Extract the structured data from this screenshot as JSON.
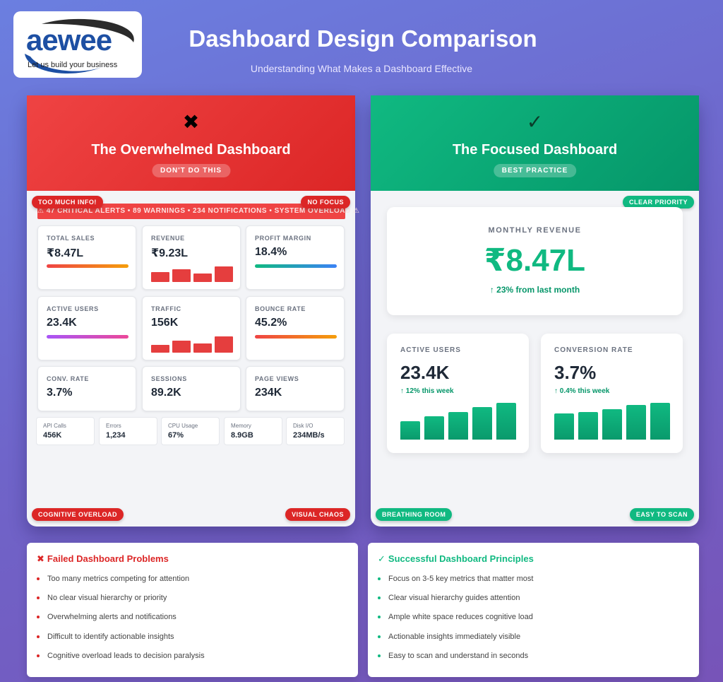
{
  "logo": {
    "brand": "aewee",
    "tagline": "Let us build your business"
  },
  "header": {
    "title": "Dashboard Design Comparison",
    "subtitle": "Understanding What Makes a Dashboard Effective"
  },
  "colors": {
    "bad": "#dc2626",
    "good": "#10b981"
  },
  "bad_panel": {
    "icon": "cross-icon",
    "icon_glyph": "✖",
    "title": "The Overwhelmed Dashboard",
    "pill": "DON'T DO THIS",
    "badges": {
      "top_left": "TOO MUCH INFO!",
      "top_right": "NO FOCUS",
      "bottom_left": "COGNITIVE OVERLOAD",
      "bottom_right": "VISUAL CHAOS"
    },
    "alert": "⚠ 47 CRITICAL ALERTS • 89 WARNINGS • 234 NOTIFICATIONS • SYSTEM OVERLOAD ⚠",
    "metrics": [
      {
        "label": "TOTAL SALES",
        "value": "₹8.47L"
      },
      {
        "label": "REVENUE",
        "value": "₹9.23L"
      },
      {
        "label": "PROFIT MARGIN",
        "value": "18.4%"
      },
      {
        "label": "ACTIVE USERS",
        "value": "23.4K"
      },
      {
        "label": "TRAFFIC",
        "value": "156K"
      },
      {
        "label": "BOUNCE RATE",
        "value": "45.2%"
      },
      {
        "label": "CONV. RATE",
        "value": "3.7%"
      },
      {
        "label": "SESSIONS",
        "value": "89.2K"
      },
      {
        "label": "PAGE VIEWS",
        "value": "234K"
      }
    ],
    "small_metrics": [
      {
        "label": "API Calls",
        "value": "456K"
      },
      {
        "label": "Errors",
        "value": "1,234"
      },
      {
        "label": "CPU Usage",
        "value": "67%"
      },
      {
        "label": "Memory",
        "value": "8.9GB"
      },
      {
        "label": "Disk I/O",
        "value": "234MB/s"
      }
    ],
    "mini_charts": {
      "revenue": [
        0.6,
        0.75,
        0.5,
        0.9
      ],
      "traffic": [
        0.45,
        0.7,
        0.55,
        0.95
      ]
    }
  },
  "good_panel": {
    "icon": "check-icon",
    "icon_glyph": "✓",
    "title": "The Focused Dashboard",
    "pill": "BEST PRACTICE",
    "badges": {
      "top_right": "CLEAR PRIORITY",
      "bottom_left": "BREATHING ROOM",
      "bottom_right": "EASY TO SCAN"
    },
    "hero": {
      "label": "MONTHLY REVENUE",
      "value": "₹8.47L",
      "change": "↑ 23% from last month"
    },
    "cards": [
      {
        "label": "ACTIVE USERS",
        "value": "23.4K",
        "change": "↑ 12% this week",
        "bars": [
          0.48,
          0.62,
          0.72,
          0.86,
          0.96
        ]
      },
      {
        "label": "CONVERSION RATE",
        "value": "3.7%",
        "change": "↑ 0.4% this week",
        "bars": [
          0.68,
          0.72,
          0.8,
          0.9,
          0.96
        ]
      }
    ]
  },
  "problems": {
    "icon": "cross-icon",
    "icon_glyph": "✖",
    "title": "Failed Dashboard Problems",
    "items": [
      "Too many metrics competing for attention",
      "No clear visual hierarchy or priority",
      "Overwhelming alerts and notifications",
      "Difficult to identify actionable insights",
      "Cognitive overload leads to decision paralysis"
    ]
  },
  "principles": {
    "icon": "check-icon",
    "icon_glyph": "✓",
    "title": "Successful Dashboard Principles",
    "items": [
      "Focus on 3-5 key metrics that matter most",
      "Clear visual hierarchy guides attention",
      "Ample white space reduces cognitive load",
      "Actionable insights immediately visible",
      "Easy to scan and understand in seconds"
    ]
  }
}
